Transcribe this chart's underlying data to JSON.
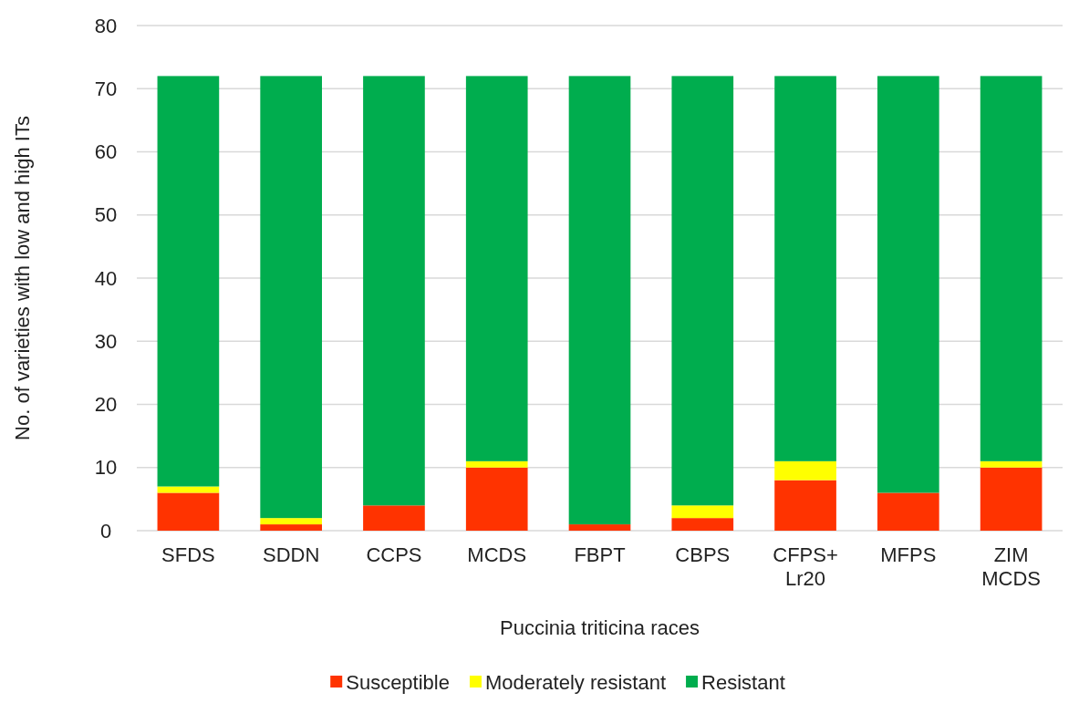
{
  "chart_data": {
    "type": "bar",
    "stacked": true,
    "xlabel": "Puccinia triticina races",
    "ylabel": "No. of varieties with low and high ITs",
    "categories": [
      "SFDS",
      "SDDN",
      "CCPS",
      "MCDS",
      "FBPT",
      "CBPS",
      "CFPS+\nLr20",
      "MFPS",
      "ZIM\nMCDS"
    ],
    "series": [
      {
        "name": "Susceptible",
        "color": "#ff3300",
        "values": [
          6,
          1,
          4,
          10,
          1,
          2,
          8,
          6,
          10
        ]
      },
      {
        "name": "Moderately resistant",
        "color": "#ffff00",
        "values": [
          1,
          1,
          0,
          1,
          0,
          2,
          3,
          0,
          1
        ]
      },
      {
        "name": "Resistant",
        "color": "#00ad4e",
        "values": [
          65,
          70,
          68,
          61,
          71,
          68,
          61,
          66,
          61
        ]
      }
    ],
    "ylim": [
      0,
      80
    ],
    "yticks": [
      0,
      10,
      20,
      30,
      40,
      50,
      60,
      70,
      80
    ],
    "grid": "y",
    "legend": "bottom"
  }
}
